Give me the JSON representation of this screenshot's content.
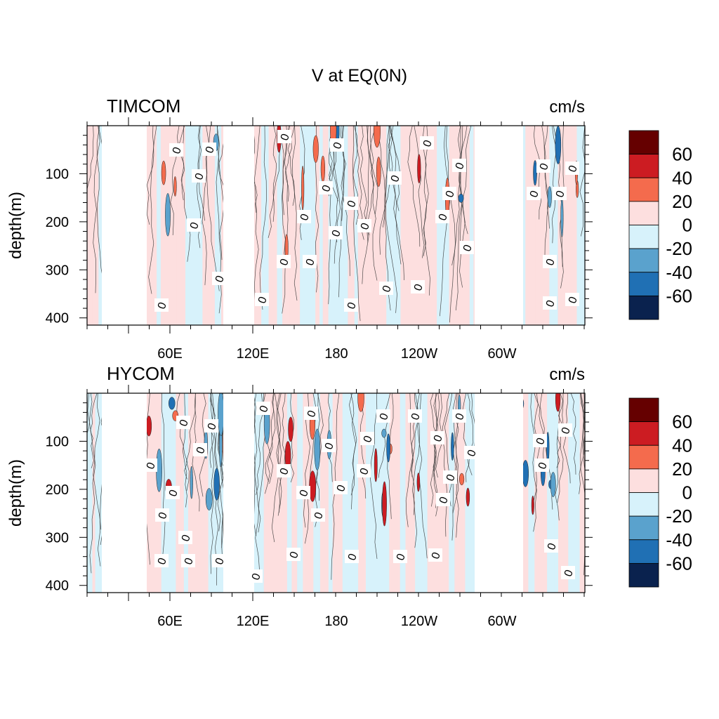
{
  "figure": {
    "title": "V at EQ(0N)"
  },
  "chart_data": [
    {
      "type": "heatmap",
      "panel_label": "TIMCOM",
      "units": "cm/s",
      "ylabel": "depth(m)",
      "xlabel": "",
      "x_ticks": [
        "60E",
        "120E",
        "180",
        "120W",
        "60W"
      ],
      "y_ticks": [
        "100",
        "200",
        "300",
        "400"
      ],
      "y_reversed": true,
      "contour_labels": [
        "0"
      ],
      "colorbar": {
        "labels": [
          "60",
          "40",
          "20",
          "0",
          "-20",
          "-40",
          "-60"
        ],
        "colors": [
          "#650000",
          "#cc1c22",
          "#f46b4d",
          "#fddfdf",
          "#d7f2fb",
          "#5aa2cd",
          "#2070b4",
          "#0a224e"
        ]
      }
    },
    {
      "type": "heatmap",
      "panel_label": "HYCOM",
      "units": "cm/s",
      "ylabel": "depth(m)",
      "xlabel": "",
      "x_ticks": [
        "60E",
        "120E",
        "180",
        "120W",
        "60W"
      ],
      "y_ticks": [
        "100",
        "200",
        "300",
        "400"
      ],
      "y_reversed": true,
      "contour_labels": [
        "0"
      ],
      "colorbar": {
        "labels": [
          "60",
          "40",
          "20",
          "0",
          "-20",
          "-40",
          "-60"
        ],
        "colors": [
          "#650000",
          "#cc1c22",
          "#f46b4d",
          "#fddfdf",
          "#d7f2fb",
          "#5aa2cd",
          "#2070b4",
          "#0a224e"
        ]
      }
    }
  ]
}
